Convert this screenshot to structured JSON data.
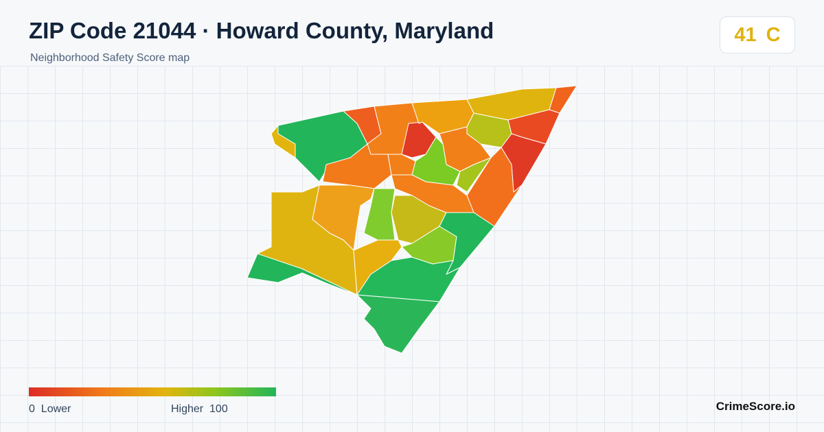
{
  "header": {
    "title": "ZIP Code 21044 · Howard County, Maryland",
    "subtitle": "Neighborhood Safety Score map"
  },
  "score": {
    "value": 41,
    "grade": "C"
  },
  "legend": {
    "min": 0,
    "min_label": "Lower",
    "max_label": "Higher",
    "max": 100
  },
  "footer": {
    "brand": "CrimeScore.io"
  }
}
